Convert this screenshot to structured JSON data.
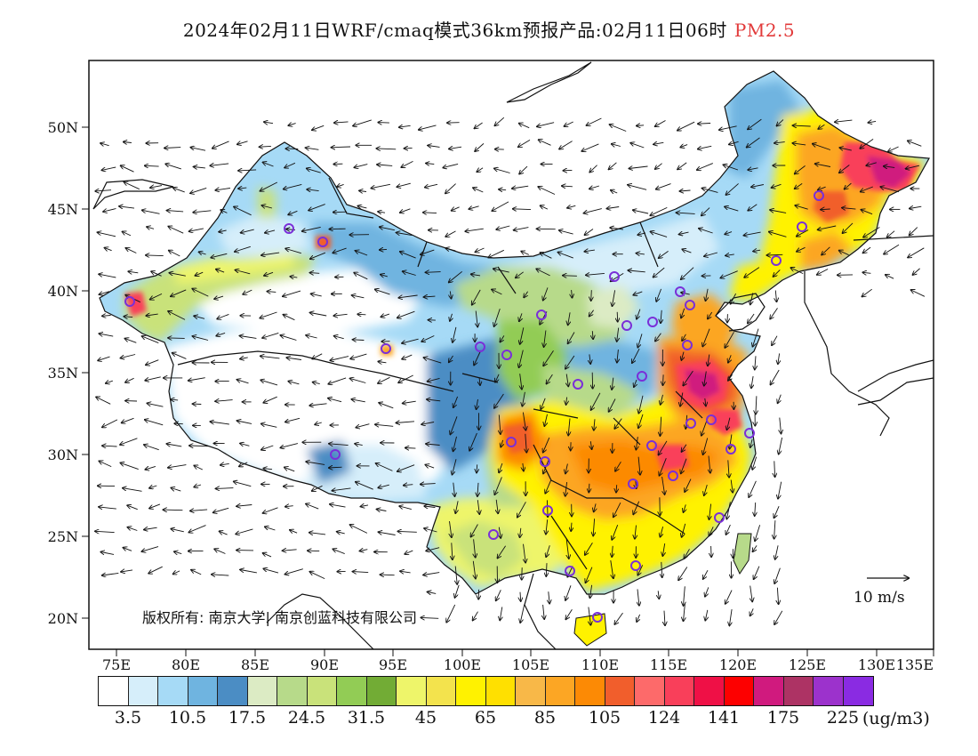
{
  "title": {
    "main": "2024年02月11日WRF/cmaq模式36km预报产品:02月11日06时",
    "variable": "PM2.5",
    "variable_color": "#e23a3a"
  },
  "axes": {
    "lon_ticks": [
      "75E",
      "80E",
      "85E",
      "90E",
      "95E",
      "100E",
      "105E",
      "110E",
      "115E",
      "120E",
      "125E",
      "130E",
      "135E"
    ],
    "lat_ticks": [
      "20N",
      "25N",
      "30N",
      "35N",
      "40N",
      "45N",
      "50N"
    ]
  },
  "wind_reference": {
    "label": "10 m/s"
  },
  "copyright": "版权所有: 南京大学| 南京创蓝科技有限公司",
  "colorbar": {
    "colors": [
      "#ffffff",
      "#d6eefa",
      "#a6daf6",
      "#6fb4e0",
      "#4b8dc4",
      "#dcebc4",
      "#b7da8a",
      "#c9e27a",
      "#92cc55",
      "#72ac35",
      "#eef56a",
      "#f3e34d",
      "#fff200",
      "#ffe000",
      "#f8b848",
      "#fca624",
      "#fc8a05",
      "#f15e2c",
      "#fd6a6a",
      "#f93f5a",
      "#ef1046",
      "#fd0000",
      "#d01a7e",
      "#ad3364",
      "#9c32cc",
      "#8a2be2"
    ],
    "labels": [
      "3.5",
      "10.5",
      "17.5",
      "24.5",
      "31.5",
      "45",
      "65",
      "85",
      "105",
      "124",
      "141",
      "175",
      "225"
    ],
    "units": "(ug/m3)"
  }
}
